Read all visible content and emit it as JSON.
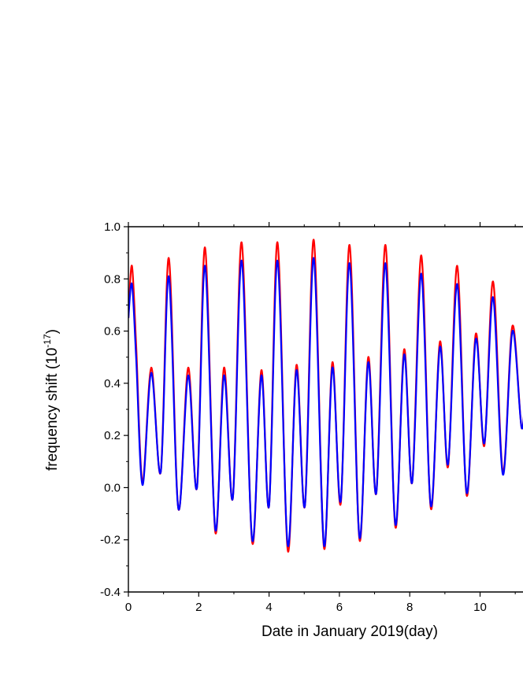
{
  "chart_data": {
    "type": "line",
    "xlabel": "Date in January 2019(day)",
    "ylabel": {
      "base": "frequency shift (10",
      "exponent": "-17",
      "close": ")"
    },
    "xlim": [
      0,
      11.3
    ],
    "ylim": [
      -0.4,
      1.0
    ],
    "x_ticks": [
      0,
      2,
      4,
      6,
      8,
      10
    ],
    "x_tick_labels": [
      "0",
      "2",
      "4",
      "6",
      "8",
      "10"
    ],
    "y_ticks": [
      -0.4,
      -0.2,
      0.0,
      0.2,
      0.4,
      0.6,
      0.8,
      1.0
    ],
    "y_tick_labels": [
      "-0.4",
      "-0.2",
      "0.0",
      "0.2",
      "0.4",
      "0.6",
      "0.8",
      "1.0"
    ],
    "grid": false,
    "series": [
      {
        "color": "#ff0000",
        "points": [
          [
            0.0,
            0.65
          ],
          [
            0.1,
            0.85
          ],
          [
            0.22,
            0.55
          ],
          [
            0.4,
            0.02
          ],
          [
            0.65,
            0.46
          ],
          [
            0.92,
            0.06
          ],
          [
            1.15,
            0.88
          ],
          [
            1.42,
            -0.08
          ],
          [
            1.7,
            0.46
          ],
          [
            1.95,
            0.0
          ],
          [
            2.18,
            0.92
          ],
          [
            2.47,
            -0.17
          ],
          [
            2.72,
            0.46
          ],
          [
            2.97,
            -0.04
          ],
          [
            3.22,
            0.94
          ],
          [
            3.52,
            -0.21
          ],
          [
            3.78,
            0.45
          ],
          [
            4.0,
            -0.07
          ],
          [
            4.24,
            0.94
          ],
          [
            4.53,
            -0.24
          ],
          [
            4.78,
            0.47
          ],
          [
            5.02,
            -0.07
          ],
          [
            5.27,
            0.95
          ],
          [
            5.56,
            -0.23
          ],
          [
            5.8,
            0.48
          ],
          [
            6.04,
            -0.06
          ],
          [
            6.29,
            0.93
          ],
          [
            6.57,
            -0.2
          ],
          [
            6.82,
            0.5
          ],
          [
            7.05,
            -0.02
          ],
          [
            7.31,
            0.93
          ],
          [
            7.59,
            -0.15
          ],
          [
            7.84,
            0.53
          ],
          [
            8.07,
            0.02
          ],
          [
            8.33,
            0.89
          ],
          [
            8.6,
            -0.08
          ],
          [
            8.86,
            0.56
          ],
          [
            9.09,
            0.08
          ],
          [
            9.35,
            0.85
          ],
          [
            9.62,
            -0.03
          ],
          [
            9.88,
            0.59
          ],
          [
            10.12,
            0.16
          ],
          [
            10.37,
            0.79
          ],
          [
            10.65,
            0.06
          ],
          [
            10.92,
            0.62
          ],
          [
            11.18,
            0.23
          ],
          [
            11.3,
            0.42
          ]
        ]
      },
      {
        "color": "#0000ff",
        "points": [
          [
            0.0,
            0.65
          ],
          [
            0.1,
            0.78
          ],
          [
            0.22,
            0.5
          ],
          [
            0.4,
            0.01
          ],
          [
            0.65,
            0.44
          ],
          [
            0.92,
            0.06
          ],
          [
            1.15,
            0.81
          ],
          [
            1.42,
            -0.08
          ],
          [
            1.7,
            0.43
          ],
          [
            1.95,
            0.0
          ],
          [
            2.18,
            0.85
          ],
          [
            2.47,
            -0.16
          ],
          [
            2.72,
            0.43
          ],
          [
            2.97,
            -0.04
          ],
          [
            3.22,
            0.87
          ],
          [
            3.52,
            -0.2
          ],
          [
            3.78,
            0.43
          ],
          [
            4.0,
            -0.07
          ],
          [
            4.24,
            0.87
          ],
          [
            4.53,
            -0.22
          ],
          [
            4.78,
            0.45
          ],
          [
            5.02,
            -0.07
          ],
          [
            5.27,
            0.88
          ],
          [
            5.56,
            -0.22
          ],
          [
            5.8,
            0.46
          ],
          [
            6.04,
            -0.05
          ],
          [
            6.29,
            0.86
          ],
          [
            6.57,
            -0.19
          ],
          [
            6.82,
            0.48
          ],
          [
            7.05,
            -0.02
          ],
          [
            7.31,
            0.86
          ],
          [
            7.59,
            -0.14
          ],
          [
            7.84,
            0.51
          ],
          [
            8.07,
            0.02
          ],
          [
            8.33,
            0.82
          ],
          [
            8.6,
            -0.07
          ],
          [
            8.86,
            0.54
          ],
          [
            9.09,
            0.09
          ],
          [
            9.35,
            0.78
          ],
          [
            9.62,
            -0.02
          ],
          [
            9.88,
            0.57
          ],
          [
            10.12,
            0.17
          ],
          [
            10.37,
            0.73
          ],
          [
            10.65,
            0.05
          ],
          [
            10.92,
            0.6
          ],
          [
            11.18,
            0.23
          ],
          [
            11.3,
            0.41
          ]
        ]
      }
    ]
  }
}
